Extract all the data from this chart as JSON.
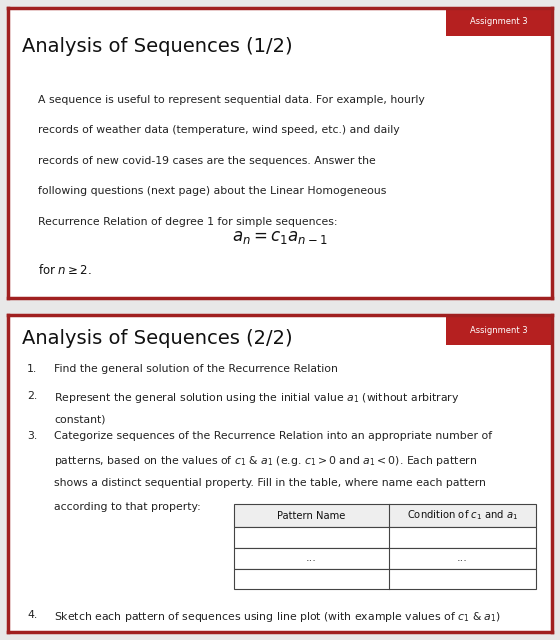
{
  "bg_color": "#e8e8e8",
  "panel_bg": "#ffffff",
  "border_color": "#a02020",
  "badge_color": "#b52020",
  "badge_text": "Assignment 3",
  "badge_text_color": "#ffffff",
  "panel1_title": "Analysis of Sequences (1/2)",
  "panel1_body_lines": [
    "A sequence is useful to represent sequential data. For example, hourly",
    "records of weather data (temperature, wind speed, etc.) and daily",
    "records of new covid-19 cases are the sequences. Answer the",
    "following questions (next page) about the Linear Homogeneous",
    "Recurrence Relation of degree 1 for simple sequences:"
  ],
  "panel1_formula": "$a_n = c_1a_{n-1}$",
  "panel1_footnote": "for $n \\geq 2$.",
  "panel2_title": "Analysis of Sequences (2/2)",
  "item1": "Find the general solution of the Recurrence Relation",
  "item2_lines": [
    "Represent the general solution using the initial value $a_1$ (without arbitrary",
    "constant)"
  ],
  "item3_lines": [
    "Categorize sequences of the Recurrence Relation into an appropriate number of",
    "patterns, based on the values of $c_1$ & $a_1$ (e.g. $c_1 > 0$ and $a_1 < 0$). Each pattern",
    "shows a distinct sequential property. Fill in the table, where name each pattern",
    "according to that property:"
  ],
  "table_col1": "Pattern Name",
  "table_col2": "Condition of $c_1$ and $a_1$",
  "table_dots": "...",
  "item4": "Sketch each pattern of sequences using line plot (with example values of $c_1$ & $a_1$)"
}
